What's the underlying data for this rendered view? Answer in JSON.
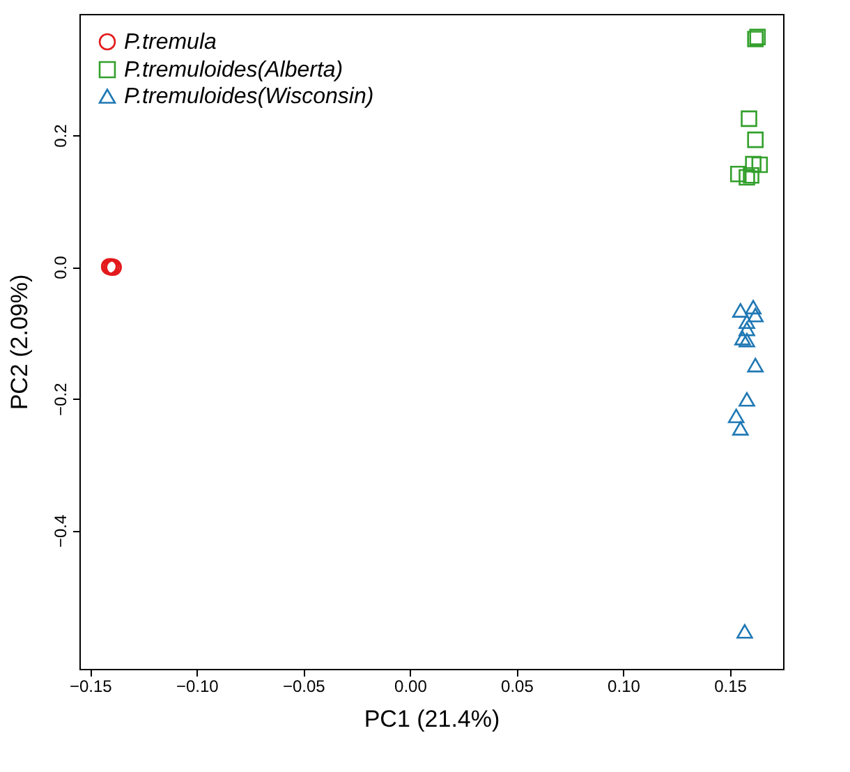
{
  "chart_data": {
    "type": "scatter",
    "xlabel": "PC1 (21.4%)",
    "ylabel": "PC2 (2.09%)",
    "xlim": [
      -0.155,
      0.175
    ],
    "xticks": [
      {
        "value": -0.15,
        "label": "−0.15"
      },
      {
        "value": -0.1,
        "label": "−0.10"
      },
      {
        "value": -0.05,
        "label": "−0.05"
      },
      {
        "value": 0,
        "label": "0.00"
      },
      {
        "value": 0.05,
        "label": "0.05"
      },
      {
        "value": 0.1,
        "label": "0.10"
      },
      {
        "value": 0.15,
        "label": "0.15"
      }
    ],
    "ylim": [
      -0.61,
      0.384
    ],
    "yticks": [
      {
        "value": -0.4,
        "label": "−0.4"
      },
      {
        "value": -0.2,
        "label": "−0.2"
      },
      {
        "value": 0,
        "label": "0.0"
      },
      {
        "value": 0.2,
        "label": "0.2"
      }
    ],
    "grid": false,
    "legend": "top left",
    "series": [
      {
        "name": "P.tremula",
        "color": "#e31a1c",
        "marker": "circle",
        "x": [
          -0.141,
          -0.14,
          -0.139,
          -0.14,
          -0.141,
          -0.139
        ],
        "values": [
          0.0,
          0.001,
          0.0,
          -0.001,
          0.001,
          -0.001
        ]
      },
      {
        "name": "P.tremuloides(Alberta)",
        "color": "#33a02c",
        "marker": "square",
        "x": [
          0.163,
          0.162,
          0.159,
          0.162,
          0.164,
          0.161,
          0.154,
          0.158,
          0.16
        ],
        "values": [
          0.349,
          0.346,
          0.225,
          0.193,
          0.155,
          0.156,
          0.141,
          0.136,
          0.139
        ]
      },
      {
        "name": "P.tremuloides(Wisconsin)",
        "color": "#1f78b4",
        "marker": "triangle",
        "x": [
          0.155,
          0.161,
          0.162,
          0.158,
          0.158,
          0.156,
          0.158,
          0.162,
          0.158,
          0.153,
          0.155,
          0.157
        ],
        "values": [
          -0.066,
          -0.061,
          -0.073,
          -0.083,
          -0.094,
          -0.108,
          -0.111,
          -0.149,
          -0.201,
          -0.226,
          -0.245,
          -0.553
        ]
      }
    ]
  }
}
